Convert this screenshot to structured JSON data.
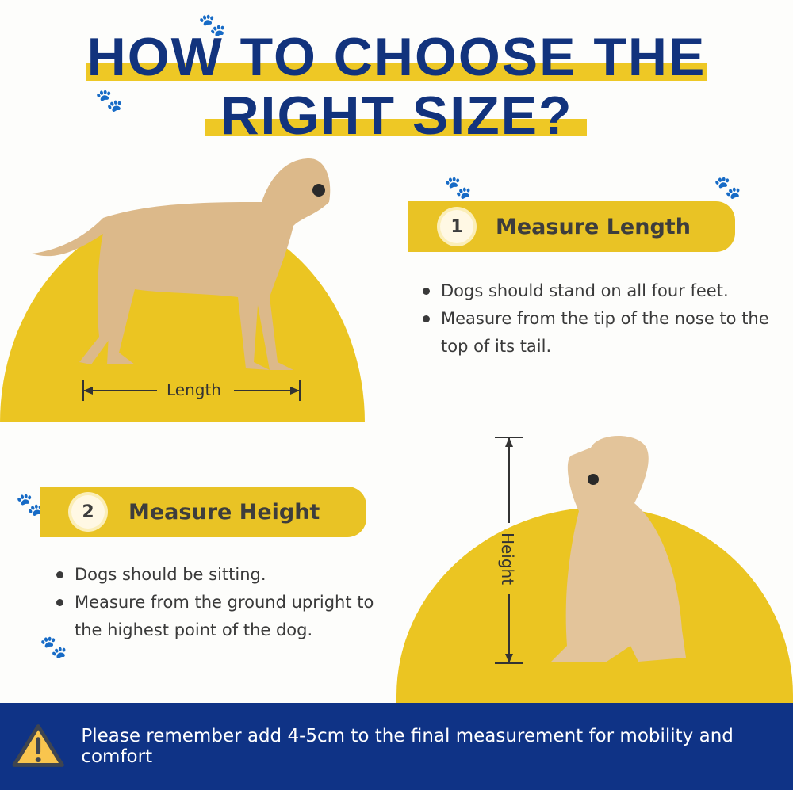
{
  "title": {
    "line1": "HOW TO CHOOSE THE",
    "line2": "RIGHT SIZE?"
  },
  "step1": {
    "number": "1",
    "heading": "Measure Length",
    "bullets": [
      "Dogs should stand on all four feet.",
      "Measure from the tip of the nose to the top of its tail."
    ],
    "dimension_label": "Length"
  },
  "step2": {
    "number": "2",
    "heading": "Measure Height",
    "bullets": [
      "Dogs should be sitting.",
      "Measure from the ground upright to the highest point of the dog."
    ],
    "dimension_label": "Height"
  },
  "footer": {
    "icon": "warning-icon",
    "text": "Please remember add 4-5cm to the final measurement for mobility and comfort"
  },
  "colors": {
    "navy": "#12337d",
    "yellow": "#ebc522",
    "footer": "#0f3386"
  }
}
